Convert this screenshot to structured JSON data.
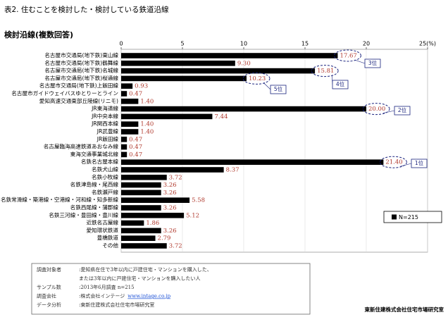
{
  "header": {
    "title": "表2. 住むことを検討した・検討している鉄道沿線",
    "subtitle": "検討沿線(複数回答)"
  },
  "chart_data": {
    "type": "hbar",
    "categories": [
      "名古屋市交通局(地下鉄)東山線",
      "名古屋市交通局(地下鉄)鶴舞線",
      "名古屋市交通局(地下鉄)名城線",
      "名古屋市交通局(地下鉄)桜通線",
      "名古屋市交通局(地下鉄)上飯田線",
      "名古屋市ガイドウェイバスゆとりーとライン",
      "愛知高速交通東部丘陵線(リニモ)",
      "JR東海道線",
      "JR中央本線",
      "JR関西本線",
      "JR武豊線",
      "JR飯田線",
      "名古屋臨海高速鉄道あおなみ線",
      "東海交通事業城北線",
      "名鉄名古屋本線",
      "名鉄犬山線",
      "名鉄小牧線",
      "名鉄津島線・尾西線",
      "名鉄瀬戸線",
      "名鉄常滑線・築港線・空港線・河和線・知多新線",
      "名鉄西尾線・蒲郡線",
      "名鉄三河線・豊田線・豊川線",
      "近鉄名古屋線",
      "愛知環状鉄道",
      "豊橋鉄道",
      "その他"
    ],
    "series": [
      {
        "name": "N=215",
        "color": "#000000",
        "values": [
          17.67,
          9.3,
          15.81,
          10.23,
          0.93,
          0.47,
          1.4,
          20.0,
          7.44,
          1.4,
          1.4,
          0.47,
          0.47,
          0.47,
          21.4,
          8.37,
          3.72,
          3.26,
          3.26,
          5.58,
          3.26,
          5.12,
          1.86,
          3.26,
          2.79,
          3.72
        ],
        "value_labels": [
          "17.67",
          "9.30",
          "15.81",
          "10.23",
          "0.93",
          "0.47",
          "1.40",
          "20.00",
          "7.44",
          "1.40",
          "1.40",
          "0.47",
          "0.47",
          "0.47",
          "21.40",
          "8.37",
          "3.72",
          "3.26",
          "3.26",
          "5.58",
          "3.26",
          "5.12",
          "1.86",
          "3.26",
          "2.79",
          "3.72"
        ]
      }
    ],
    "xlim": [
      0,
      25
    ],
    "xticks": [
      0,
      5,
      10,
      15,
      20,
      {
        "value": 25,
        "label": "25(%)"
      }
    ],
    "grid": true,
    "legend": "right",
    "annotations": [
      "1位",
      "2位",
      "3位",
      "4位",
      "5位"
    ]
  },
  "footer": {
    "rows": [
      {
        "label": "調査対象者",
        "lines": [
          ":愛知県在住で3年以内に戸建住宅・マンションを購入した、",
          "または3年以内に戸建住宅・マンションを購入したい人"
        ]
      },
      {
        "label": "サンプル数",
        "lines": [
          ":2013年6月調査 n=215"
        ]
      },
      {
        "label": "調査会社",
        "lines": [
          ":株式会社インテージ"
        ],
        "link": "www.intage.co.jp"
      },
      {
        "label": "データ分析",
        "lines": [
          ":東新住建株式会社住宅市場研究室"
        ]
      }
    ],
    "credit": "東新住建株式会社住宅市場研究室"
  }
}
